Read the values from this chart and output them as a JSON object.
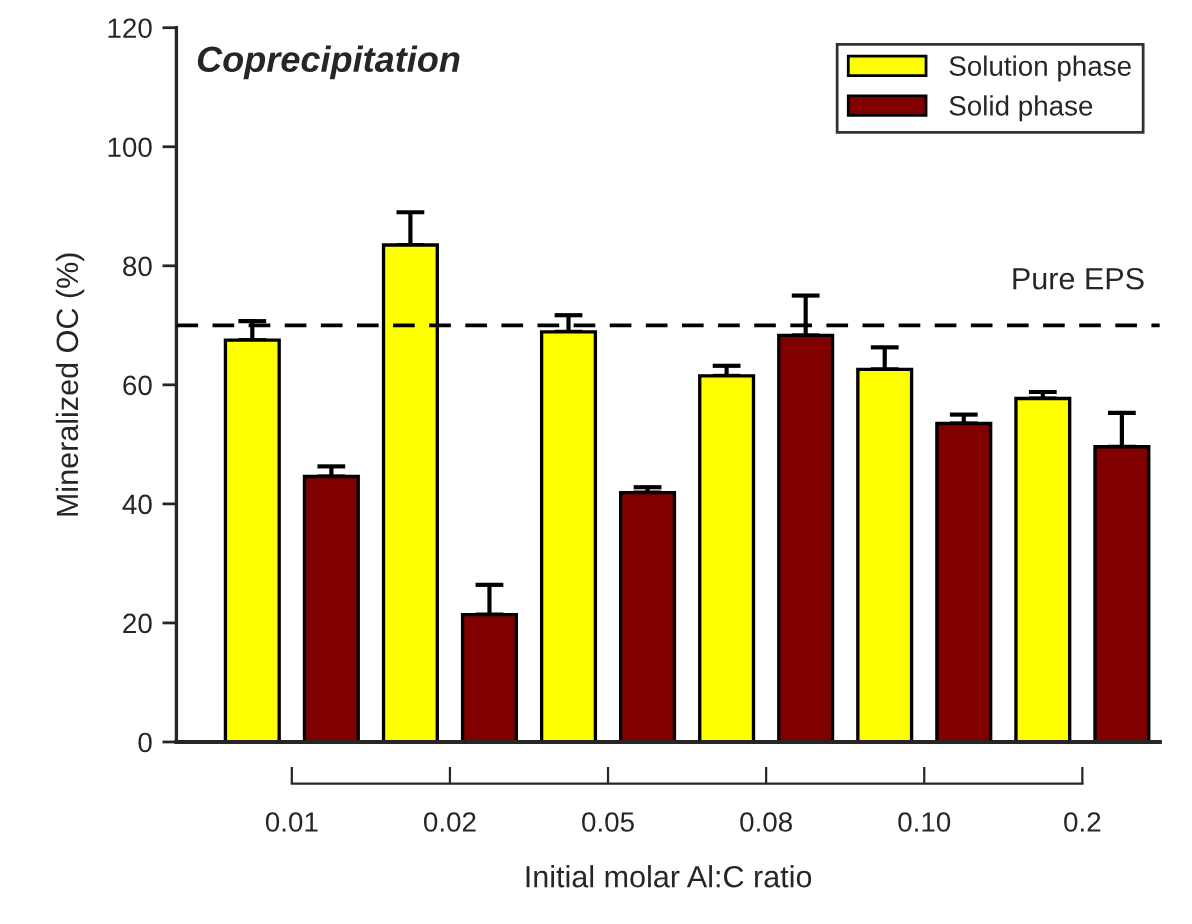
{
  "chart_data": {
    "type": "bar",
    "title": "Coprecipitation",
    "xlabel": "Initial molar Al:C ratio",
    "ylabel": "Mineralized OC (%)",
    "categories": [
      "0.01",
      "0.02",
      "0.05",
      "0.08",
      "0.10",
      "0.2"
    ],
    "series": [
      {
        "name": "Solution phase",
        "color": "#ffff00",
        "values": [
          67.5,
          83.5,
          68.9,
          61.5,
          62.6,
          57.7
        ],
        "errors": [
          [
            67.5,
            70.7
          ],
          [
            83.5,
            89.0
          ],
          [
            68.9,
            71.7
          ],
          [
            61.5,
            63.2
          ],
          [
            62.6,
            66.3
          ],
          [
            57.7,
            58.8
          ]
        ]
      },
      {
        "name": "Solid phase",
        "color": "#800000",
        "values": [
          44.6,
          21.4,
          41.9,
          68.3,
          53.5,
          49.6
        ],
        "errors": [
          [
            44.6,
            46.3
          ],
          [
            21.4,
            26.4
          ],
          [
            41.9,
            42.8
          ],
          [
            68.3,
            75.0
          ],
          [
            53.5,
            55.0
          ],
          [
            49.6,
            55.3
          ]
        ]
      }
    ],
    "ylim": [
      0,
      120
    ],
    "yticks": [
      0,
      20,
      40,
      60,
      80,
      100,
      120
    ],
    "ref_lines": [
      {
        "axis": "y",
        "value": 70,
        "label": "Pure EPS",
        "color": "#000000",
        "line_style": "dashed"
      }
    ],
    "legend": "top right",
    "grid": false
  }
}
